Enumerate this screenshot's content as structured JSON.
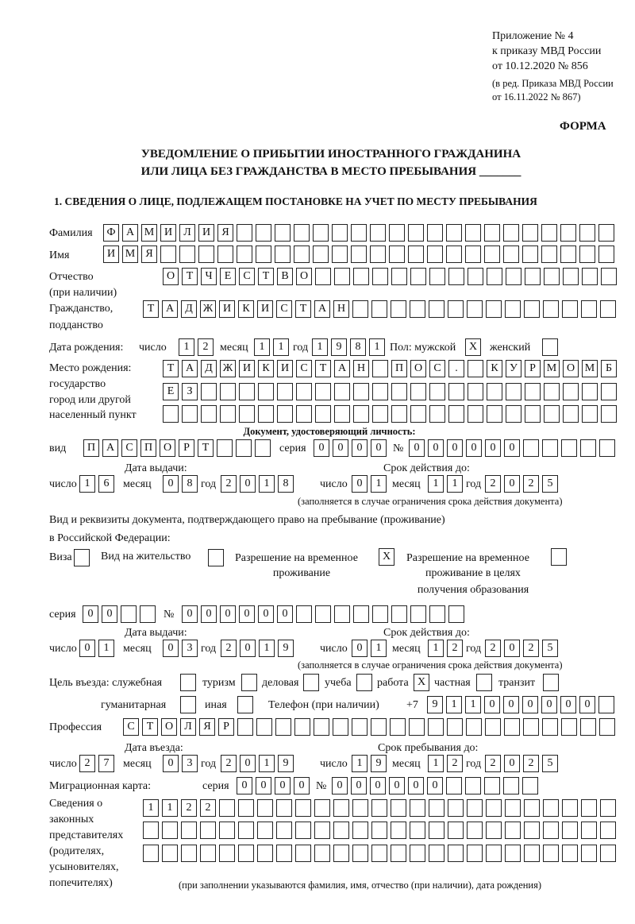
{
  "header": {
    "appendix": "Приложение № 4",
    "order_line": "к приказу МВД России",
    "order_date": "от 10.12.2020 № 856",
    "edition_1": "(в ред. Приказа МВД России",
    "edition_2": "от 16.11.2022 № 867)",
    "forma": "ФОРМА",
    "title_1": "УВЕДОМЛЕНИЕ О ПРИБЫТИИ ИНОСТРАННОГО ГРАЖДАНИНА",
    "title_2": "ИЛИ ЛИЦА БЕЗ ГРАЖДАНСТВА В МЕСТО ПРЕБЫВАНИЯ _______",
    "section_1": "1. СВЕДЕНИЯ О ЛИЦЕ, ПОДЛЕЖАЩЕМ ПОСТАНОВКЕ НА УЧЕТ ПО МЕСТУ ПРЕБЫВАНИЯ"
  },
  "labels": {
    "surname": "Фамилия",
    "name": "Имя",
    "patronymic_1": "Отчество",
    "patronymic_2": "(при наличии)",
    "citizenship_1": "Гражданство,",
    "citizenship_2": "подданство",
    "dob": "Дата рождения:",
    "day": "число",
    "month": "месяц",
    "year": "год",
    "sex": "Пол: мужской",
    "female": "женский",
    "pob_1": "Место рождения:",
    "pob_2": "государство",
    "pob_3": "город или другой",
    "pob_4": "населенный пункт",
    "id_doc": "Документ, удостоверяющий личность:",
    "kind": "вид",
    "series": "серия",
    "number": "№",
    "issue_date": "Дата выдачи:",
    "valid_until": "Срок действия до:",
    "validity_note": "(заполняется в случае ограничения срока действия документа)",
    "residence_doc_1": "Вид и реквизиты документа, подтверждающего право на пребывание (проживание)",
    "residence_doc_2": "в Российской Федерации:",
    "visa": "Виза",
    "residence_permit": "Вид на жительство",
    "temp_permit_1": "Разрешение на временное",
    "temp_permit_2": "проживание",
    "temp_edu_1": "Разрешение на временное",
    "temp_edu_2": "проживание в целях",
    "temp_edu_3": "получения образования",
    "purpose": "Цель въезда: служебная",
    "tourism": "туризм",
    "business": "деловая",
    "study": "учеба",
    "work": "работа",
    "private": "частная",
    "transit": "транзит",
    "humanitarian": "гуманитарная",
    "other": "иная",
    "phone": "Телефон (при наличии)",
    "phone_prefix": "+7",
    "profession": "Профессия",
    "entry_date": "Дата въезда:",
    "stay_until": "Срок пребывания до:",
    "migration_card": "Миграционная карта:",
    "reps_1": "Сведения о",
    "reps_2": "законных",
    "reps_3": "представителях",
    "reps_4": "(родителях,",
    "reps_5": "усыновителях,",
    "reps_6": "попечителях)",
    "reps_note": "(при заполнении указываются фамилия, имя, отчество (при наличии), дата рождения)"
  },
  "fields": {
    "surname": [
      "Ф",
      "А",
      "М",
      "И",
      "Л",
      "И",
      "Я",
      "",
      "",
      "",
      "",
      "",
      "",
      "",
      "",
      "",
      "",
      "",
      "",
      "",
      "",
      "",
      "",
      "",
      "",
      "",
      ""
    ],
    "name": [
      "И",
      "М",
      "Я",
      "",
      "",
      "",
      "",
      "",
      "",
      "",
      "",
      "",
      "",
      "",
      "",
      "",
      "",
      "",
      "",
      "",
      "",
      "",
      "",
      "",
      "",
      "",
      ""
    ],
    "patronymic": [
      "О",
      "Т",
      "Ч",
      "Е",
      "С",
      "Т",
      "В",
      "О",
      "",
      "",
      "",
      "",
      "",
      "",
      "",
      "",
      "",
      "",
      "",
      "",
      "",
      "",
      "",
      ""
    ],
    "citizenship": [
      "Т",
      "А",
      "Д",
      "Ж",
      "И",
      "К",
      "И",
      "С",
      "Т",
      "А",
      "Н",
      "",
      "",
      "",
      "",
      "",
      "",
      "",
      "",
      "",
      "",
      "",
      "",
      "",
      ""
    ],
    "dob_day": [
      "1",
      "2"
    ],
    "dob_month": [
      "1",
      "1"
    ],
    "dob_year": [
      "1",
      "9",
      "8",
      "1"
    ],
    "sex_male": [
      "X"
    ],
    "sex_female": [
      ""
    ],
    "pob_1": [
      "Т",
      "А",
      "Д",
      "Ж",
      "И",
      "К",
      "И",
      "С",
      "Т",
      "А",
      "Н",
      "",
      "П",
      "О",
      "С",
      ".",
      "",
      "К",
      "У",
      "Р",
      "М",
      "О",
      "М",
      "Б"
    ],
    "pob_2": [
      "Е",
      "З",
      "",
      "",
      "",
      "",
      "",
      "",
      "",
      "",
      "",
      "",
      "",
      "",
      "",
      "",
      "",
      "",
      "",
      "",
      "",
      "",
      "",
      ""
    ],
    "pob_3": [
      "",
      "",
      "",
      "",
      "",
      "",
      "",
      "",
      "",
      "",
      "",
      "",
      "",
      "",
      "",
      "",
      "",
      "",
      "",
      "",
      "",
      "",
      "",
      ""
    ],
    "id_kind": [
      "П",
      "А",
      "С",
      "П",
      "О",
      "Р",
      "Т",
      "",
      "",
      ""
    ],
    "id_series": [
      "0",
      "0",
      "0",
      "0"
    ],
    "id_number": [
      "0",
      "0",
      "0",
      "0",
      "0",
      "0",
      "",
      "",
      "",
      "",
      ""
    ],
    "id_issue_day": [
      "1",
      "6"
    ],
    "id_issue_month": [
      "0",
      "8"
    ],
    "id_issue_year": [
      "2",
      "0",
      "1",
      "8"
    ],
    "id_valid_day": [
      "0",
      "1"
    ],
    "id_valid_month": [
      "1",
      "1"
    ],
    "id_valid_year": [
      "2",
      "0",
      "2",
      "5"
    ],
    "visa": [
      ""
    ],
    "residence_permit": [
      ""
    ],
    "temp_permit": [
      "X"
    ],
    "temp_edu": [
      ""
    ],
    "res_series": [
      "0",
      "0",
      "",
      ""
    ],
    "res_number": [
      "0",
      "0",
      "0",
      "0",
      "0",
      "0",
      "",
      "",
      "",
      "",
      "",
      "",
      "",
      "",
      ""
    ],
    "res_issue_day": [
      "0",
      "1"
    ],
    "res_issue_month": [
      "0",
      "3"
    ],
    "res_issue_year": [
      "2",
      "0",
      "1",
      "9"
    ],
    "res_valid_day": [
      "0",
      "1"
    ],
    "res_valid_month": [
      "1",
      "2"
    ],
    "res_valid_year": [
      "2",
      "0",
      "2",
      "5"
    ],
    "p_official": [
      ""
    ],
    "p_tourism": [
      ""
    ],
    "p_business": [
      ""
    ],
    "p_study": [
      ""
    ],
    "p_work": [
      "X"
    ],
    "p_private": [
      ""
    ],
    "p_transit": [
      ""
    ],
    "p_humanitarian": [
      ""
    ],
    "p_other": [
      ""
    ],
    "phone": [
      "9",
      "1",
      "1",
      "0",
      "0",
      "0",
      "0",
      "0",
      "0",
      ""
    ],
    "profession": [
      "С",
      "Т",
      "О",
      "Л",
      "Я",
      "Р",
      "",
      "",
      "",
      "",
      "",
      "",
      "",
      "",
      "",
      "",
      "",
      "",
      "",
      "",
      "",
      "",
      "",
      "",
      "",
      ""
    ],
    "entry_day": [
      "2",
      "7"
    ],
    "entry_month": [
      "0",
      "3"
    ],
    "entry_year": [
      "2",
      "0",
      "1",
      "9"
    ],
    "stay_day": [
      "1",
      "9"
    ],
    "stay_month": [
      "1",
      "2"
    ],
    "stay_year": [
      "2",
      "0",
      "2",
      "5"
    ],
    "mc_series": [
      "0",
      "0",
      "0",
      "0"
    ],
    "mc_number": [
      "0",
      "0",
      "0",
      "0",
      "0",
      "0",
      "",
      "",
      "",
      "",
      ""
    ],
    "reps_1": [
      "1",
      "1",
      "2",
      "2",
      "",
      "",
      "",
      "",
      "",
      "",
      "",
      "",
      "",
      "",
      "",
      "",
      "",
      "",
      "",
      "",
      "",
      "",
      "",
      "",
      ""
    ],
    "reps_2": [
      "",
      "",
      "",
      "",
      "",
      "",
      "",
      "",
      "",
      "",
      "",
      "",
      "",
      "",
      "",
      "",
      "",
      "",
      "",
      "",
      "",
      "",
      "",
      "",
      ""
    ],
    "reps_3": [
      "",
      "",
      "",
      "",
      "",
      "",
      "",
      "",
      "",
      "",
      "",
      "",
      "",
      "",
      "",
      "",
      "",
      "",
      "",
      "",
      "",
      "",
      "",
      "",
      ""
    ]
  }
}
